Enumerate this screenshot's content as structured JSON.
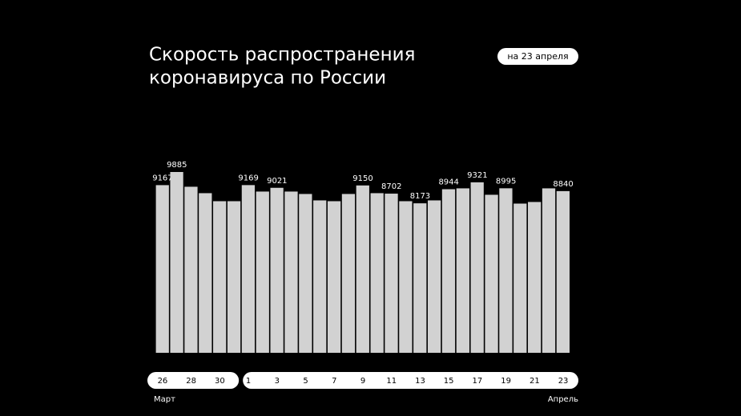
{
  "chart_data": {
    "type": "bar",
    "title_lines": [
      "Скорость распространения",
      "коронавируса по России"
    ],
    "badge": "на 23 апреля",
    "months": [
      "Март",
      "Апрель"
    ],
    "categories": [
      "26",
      null,
      "28",
      null,
      "30",
      null,
      "1",
      null,
      "3",
      null,
      "5",
      null,
      "7",
      null,
      "9",
      null,
      "11",
      null,
      "13",
      null,
      "15",
      null,
      "17",
      null,
      "19",
      null,
      "21",
      null,
      "23"
    ],
    "values": [
      9167,
      9885,
      9079,
      8728,
      8289,
      8289,
      9169,
      8816,
      9021,
      8816,
      8684,
      8333,
      8289,
      8684,
      9150,
      8728,
      8702,
      8289,
      8173,
      8333,
      8944,
      8991,
      9321,
      8640,
      8995,
      8158,
      8246,
      8991,
      8840
    ],
    "value_labels": [
      "9167",
      "9885",
      null,
      null,
      null,
      null,
      "9169",
      null,
      "9021",
      null,
      null,
      null,
      null,
      null,
      "9150",
      null,
      "8702",
      null,
      "8173",
      null,
      "8944",
      null,
      "9321",
      null,
      "8995",
      null,
      null,
      null,
      "8840"
    ],
    "color": "#d2d2d2"
  }
}
